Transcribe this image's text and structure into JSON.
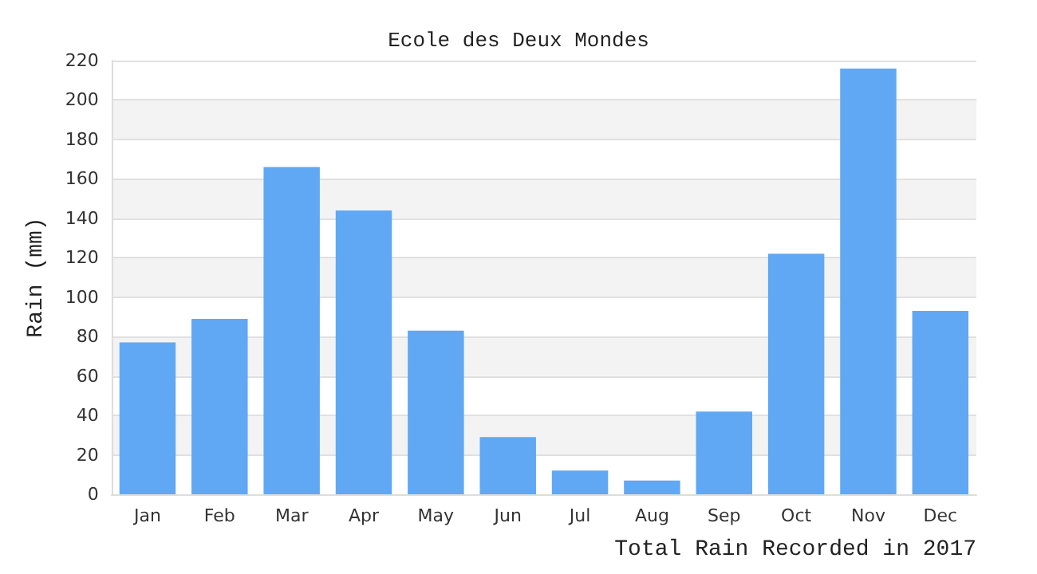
{
  "chart_data": {
    "type": "bar",
    "title": "Ecole des Deux Mondes",
    "xlabel": "Total Rain Recorded in 2017",
    "ylabel": "Rain (mm)",
    "categories": [
      "Jan",
      "Feb",
      "Mar",
      "Apr",
      "May",
      "Jun",
      "Jul",
      "Aug",
      "Sep",
      "Oct",
      "Nov",
      "Dec"
    ],
    "values": [
      77,
      89,
      166,
      144,
      83,
      29,
      12,
      7,
      42,
      122,
      216,
      93
    ],
    "color": "#60a8f4",
    "ylim": [
      0,
      220
    ],
    "yticks": [
      0,
      20,
      40,
      60,
      80,
      100,
      120,
      140,
      160,
      180,
      200,
      220
    ],
    "grid": "y"
  }
}
